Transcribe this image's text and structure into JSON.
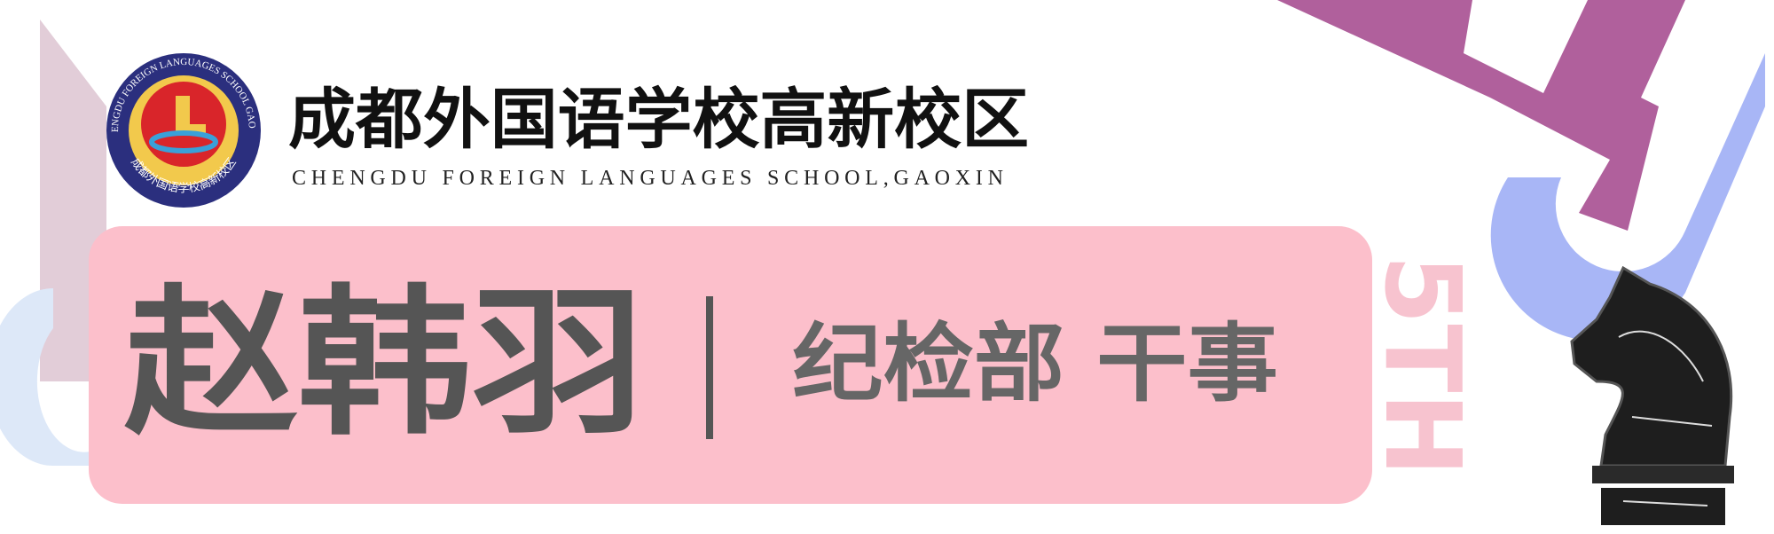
{
  "logo": {
    "ring_text": "CHENGDU FOREIGN LANGUAGES SCHOOL GAOXIN",
    "ring_text_cn": "成都外国语学校高新校区"
  },
  "header": {
    "title": "成都外国语学校高新校区",
    "subtitle": "CHENGDU FOREIGN LANGUAGES SCHOOL,GAOXIN"
  },
  "badge": {
    "name": "赵韩羽",
    "role": "纪检部 干事"
  },
  "decoration": {
    "label": "5TH"
  }
}
